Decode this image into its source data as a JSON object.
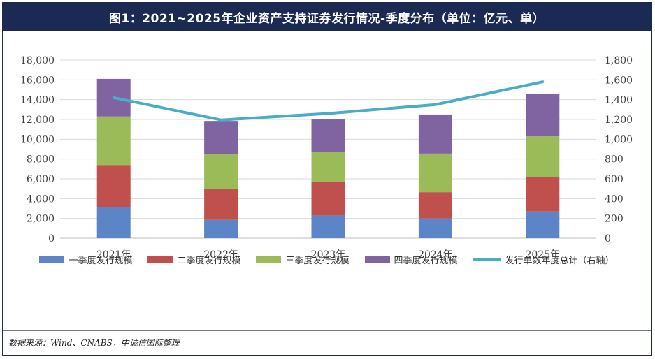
{
  "title": "图1：2021~2025年企业资产支持证券发行情况-季度分布（单位：亿元、单）",
  "source": "数据来源：Wind、CNABS，中诚信国际整理",
  "chart_data": {
    "type": "bar",
    "stacked": true,
    "categories": [
      "2021年",
      "2022年",
      "2023年",
      "2024年",
      "2025年"
    ],
    "series": [
      {
        "name": "一季度发行规模",
        "color": "#5b85c6",
        "values": [
          3150,
          1850,
          2300,
          2000,
          2700
        ]
      },
      {
        "name": "二季度发行规模",
        "color": "#c0504d",
        "values": [
          4250,
          3150,
          3350,
          2650,
          3500
        ]
      },
      {
        "name": "三季度发行规模",
        "color": "#9bbb59",
        "values": [
          4900,
          3500,
          3050,
          3900,
          4100
        ]
      },
      {
        "name": "四季度发行规模",
        "color": "#8064a2",
        "values": [
          3800,
          3350,
          3300,
          3950,
          4300
        ]
      }
    ],
    "line_series": {
      "name": "发行单数年度总计（右轴）",
      "color": "#4bacc6",
      "values": [
        1420,
        1195,
        1260,
        1350,
        1580
      ]
    },
    "ylim_left": [
      0,
      18000
    ],
    "ylim_right": [
      0,
      1800
    ],
    "yticks_left": [
      "0",
      "2,000",
      "4,000",
      "6,000",
      "8,000",
      "10,000",
      "12,000",
      "14,000",
      "16,000",
      "18,000"
    ],
    "yticks_right": [
      "0",
      "200",
      "400",
      "600",
      "800",
      "1,000",
      "1,200",
      "1,400",
      "1,600",
      "1,800"
    ],
    "grid": true,
    "legend_position": "bottom"
  }
}
